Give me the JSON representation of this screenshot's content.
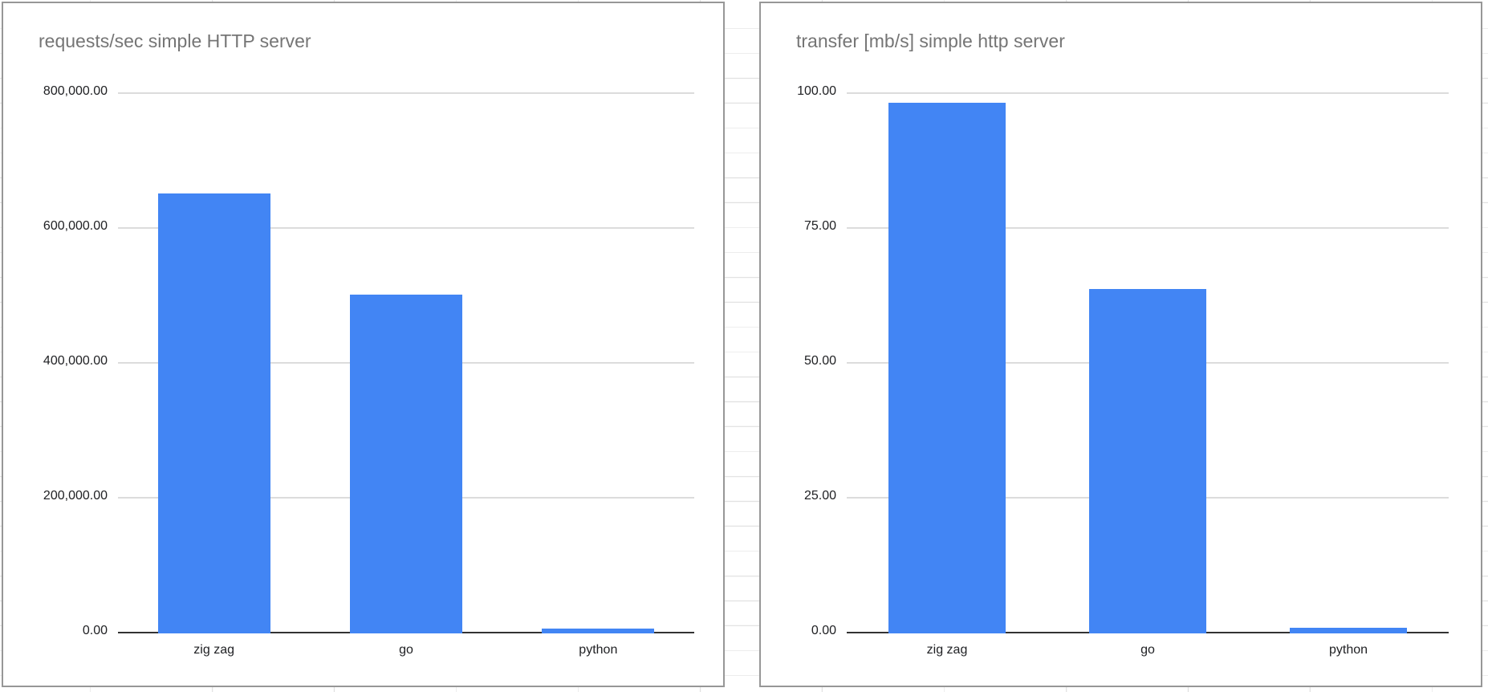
{
  "colors": {
    "bar": "#4285f4",
    "chart_title": "#757575",
    "gridline": "#dcdcdc",
    "axis_line": "#333333",
    "chart_border": "#979797",
    "sheet_gridline": "#e1e1e1",
    "tick_label": "#202124"
  },
  "chart_data": [
    {
      "type": "bar",
      "title": "requests/sec simple HTTP server",
      "categories": [
        "zig zag",
        "go",
        "python"
      ],
      "values": [
        650000,
        500000,
        5000
      ],
      "ylim": [
        0,
        800000
      ],
      "ytick_values": [
        800000,
        600000,
        400000,
        200000,
        0
      ],
      "ytick_labels": [
        "800,000.00",
        "600,000.00",
        "400,000.00",
        "200,000.00",
        "0.00"
      ],
      "xlabel": "",
      "ylabel": "",
      "grid": "horizontal",
      "legend": "none"
    },
    {
      "type": "bar",
      "title": "transfer [mb/s] simple http server",
      "categories": [
        "zig zag",
        "go",
        "python"
      ],
      "values": [
        98,
        63.5,
        0.7
      ],
      "ylim": [
        0,
        100
      ],
      "ytick_values": [
        100,
        75,
        50,
        25,
        0
      ],
      "ytick_labels": [
        "100.00",
        "75.00",
        "50.00",
        "25.00",
        "0.00"
      ],
      "xlabel": "",
      "ylabel": "",
      "grid": "horizontal",
      "legend": "none"
    }
  ]
}
